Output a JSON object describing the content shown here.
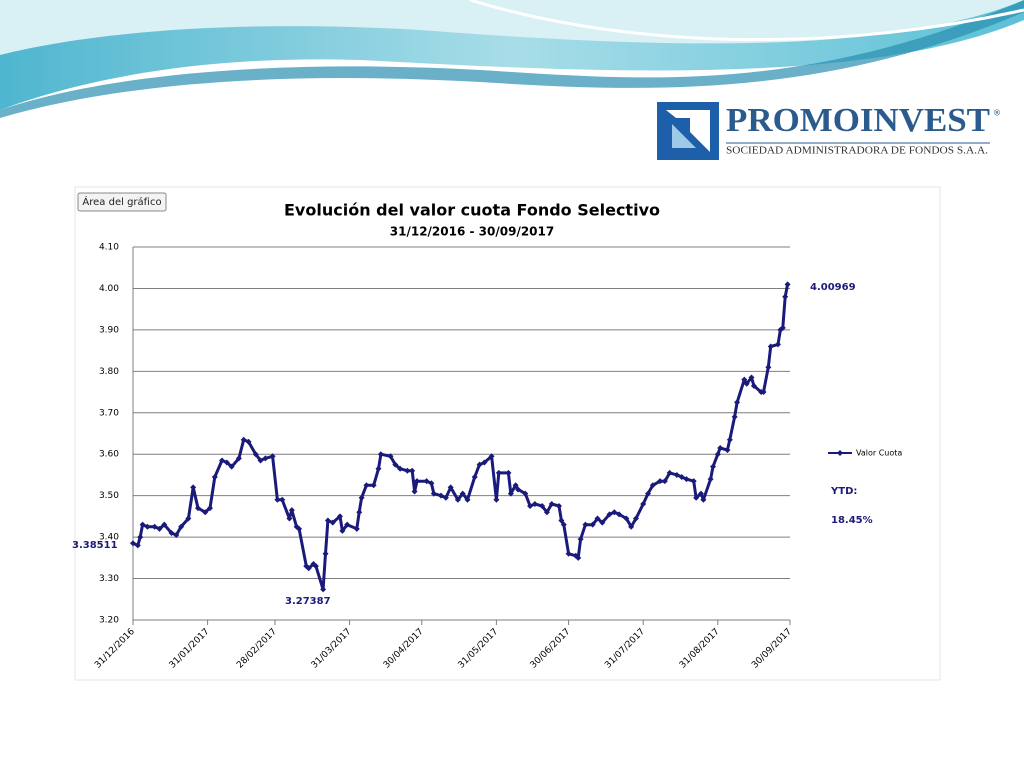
{
  "logo": {
    "name": "PROMOINVEST",
    "mark": "®",
    "tagline": "SOCIEDAD ADMINISTRADORA DE FONDOS S.A.A."
  },
  "chart_button": "Área del gráfico",
  "chart_data": {
    "type": "line",
    "title": "Evolución del valor cuota Fondo Selectivo",
    "subtitle": "31/12/2016 - 30/09/2017",
    "xlim": [
      "2016-12-31",
      "2017-09-30"
    ],
    "xticks": [
      {
        "value": "2016-12-31",
        "label": "31/12/2016"
      },
      {
        "value": "2017-01-31",
        "label": "31/01/2017"
      },
      {
        "value": "2017-02-28",
        "label": "28/02/2017"
      },
      {
        "value": "2017-03-31",
        "label": "31/03/2017"
      },
      {
        "value": "2017-04-30",
        "label": "30/04/2017"
      },
      {
        "value": "2017-05-31",
        "label": "31/05/2017"
      },
      {
        "value": "2017-06-30",
        "label": "30/06/2017"
      },
      {
        "value": "2017-07-31",
        "label": "31/07/2017"
      },
      {
        "value": "2017-08-31",
        "label": "31/08/2017"
      },
      {
        "value": "2017-09-30",
        "label": "30/09/2017"
      }
    ],
    "ylim": [
      3.2,
      4.1
    ],
    "yticks": [
      {
        "value": 3.2,
        "label": "3.20"
      },
      {
        "value": 3.3,
        "label": "3.30"
      },
      {
        "value": 3.4,
        "label": "3.40"
      },
      {
        "value": 3.5,
        "label": "3.50"
      },
      {
        "value": 3.6,
        "label": "3.60"
      },
      {
        "value": 3.7,
        "label": "3.70"
      },
      {
        "value": 3.8,
        "label": "3.80"
      },
      {
        "value": 3.9,
        "label": "3.90"
      },
      {
        "value": 4.0,
        "label": "4.00"
      },
      {
        "value": 4.1,
        "label": "4.10"
      }
    ],
    "grid": true,
    "legend": "right",
    "x": [
      "2016-12-31",
      "2017-01-02",
      "2017-01-03",
      "2017-01-04",
      "2017-01-06",
      "2017-01-09",
      "2017-01-11",
      "2017-01-13",
      "2017-01-16",
      "2017-01-18",
      "2017-01-20",
      "2017-01-23",
      "2017-01-25",
      "2017-01-27",
      "2017-01-30",
      "2017-02-01",
      "2017-02-03",
      "2017-02-06",
      "2017-02-08",
      "2017-02-10",
      "2017-02-13",
      "2017-02-15",
      "2017-02-17",
      "2017-02-20",
      "2017-02-22",
      "2017-02-24",
      "2017-02-27",
      "2017-03-01",
      "2017-03-03",
      "2017-03-06",
      "2017-03-07",
      "2017-03-09",
      "2017-03-10",
      "2017-03-13",
      "2017-03-14",
      "2017-03-16",
      "2017-03-17",
      "2017-03-20",
      "2017-03-21",
      "2017-03-22",
      "2017-03-24",
      "2017-03-27",
      "2017-03-28",
      "2017-03-30",
      "2017-04-03",
      "2017-04-04",
      "2017-04-05",
      "2017-04-07",
      "2017-04-10",
      "2017-04-12",
      "2017-04-13",
      "2017-04-17",
      "2017-04-19",
      "2017-04-21",
      "2017-04-24",
      "2017-04-26",
      "2017-04-27",
      "2017-04-28",
      "2017-05-02",
      "2017-05-04",
      "2017-05-05",
      "2017-05-08",
      "2017-05-10",
      "2017-05-12",
      "2017-05-15",
      "2017-05-17",
      "2017-05-19",
      "2017-05-22",
      "2017-05-24",
      "2017-05-26",
      "2017-05-29",
      "2017-05-31",
      "2017-06-01",
      "2017-06-05",
      "2017-06-06",
      "2017-06-08",
      "2017-06-09",
      "2017-06-12",
      "2017-06-14",
      "2017-06-16",
      "2017-06-19",
      "2017-06-21",
      "2017-06-23",
      "2017-06-26",
      "2017-06-27",
      "2017-06-28",
      "2017-06-30",
      "2017-07-03",
      "2017-07-04",
      "2017-07-05",
      "2017-07-07",
      "2017-07-10",
      "2017-07-12",
      "2017-07-14",
      "2017-07-17",
      "2017-07-19",
      "2017-07-21",
      "2017-07-24",
      "2017-07-26",
      "2017-07-28",
      "2017-07-31",
      "2017-08-02",
      "2017-08-04",
      "2017-08-07",
      "2017-08-09",
      "2017-08-11",
      "2017-08-14",
      "2017-08-16",
      "2017-08-18",
      "2017-08-21",
      "2017-08-22",
      "2017-08-24",
      "2017-08-25",
      "2017-08-28",
      "2017-08-29",
      "2017-08-31",
      "2017-09-01",
      "2017-09-04",
      "2017-09-05",
      "2017-09-07",
      "2017-09-08",
      "2017-09-11",
      "2017-09-12",
      "2017-09-14",
      "2017-09-15",
      "2017-09-18",
      "2017-09-19",
      "2017-09-21",
      "2017-09-22",
      "2017-09-25",
      "2017-09-26",
      "2017-09-27",
      "2017-09-28",
      "2017-09-29"
    ],
    "series": [
      {
        "name": "Valor Cuota",
        "color": "#1a1a7a",
        "values": [
          3.38511,
          3.38,
          3.4,
          3.43,
          3.425,
          3.425,
          3.42,
          3.43,
          3.41,
          3.405,
          3.425,
          3.445,
          3.52,
          3.47,
          3.46,
          3.47,
          3.545,
          3.585,
          3.58,
          3.57,
          3.59,
          3.635,
          3.63,
          3.6,
          3.585,
          3.59,
          3.595,
          3.49,
          3.49,
          3.445,
          3.465,
          3.425,
          3.42,
          3.33,
          3.325,
          3.335,
          3.33,
          3.27387,
          3.36,
          3.44,
          3.435,
          3.45,
          3.415,
          3.43,
          3.42,
          3.46,
          3.495,
          3.525,
          3.525,
          3.565,
          3.6,
          3.595,
          3.575,
          3.565,
          3.56,
          3.56,
          3.51,
          3.535,
          3.535,
          3.53,
          3.505,
          3.5,
          3.495,
          3.52,
          3.49,
          3.505,
          3.49,
          3.545,
          3.575,
          3.58,
          3.595,
          3.49,
          3.555,
          3.555,
          3.505,
          3.525,
          3.515,
          3.505,
          3.475,
          3.48,
          3.475,
          3.46,
          3.48,
          3.475,
          3.44,
          3.43,
          3.36,
          3.355,
          3.35,
          3.395,
          3.43,
          3.43,
          3.445,
          3.435,
          3.455,
          3.46,
          3.455,
          3.445,
          3.425,
          3.445,
          3.48,
          3.505,
          3.525,
          3.535,
          3.535,
          3.555,
          3.55,
          3.545,
          3.54,
          3.535,
          3.495,
          3.505,
          3.49,
          3.54,
          3.57,
          3.6,
          3.615,
          3.61,
          3.635,
          3.69,
          3.725,
          3.78,
          3.77,
          3.785,
          3.765,
          3.75,
          3.75,
          3.81,
          3.86,
          3.865,
          3.9,
          3.905,
          3.98,
          4.00969
        ]
      }
    ],
    "annotations": [
      "3.38511",
      "3.27387",
      "4.00969",
      "YTD:",
      "18.45%"
    ]
  }
}
